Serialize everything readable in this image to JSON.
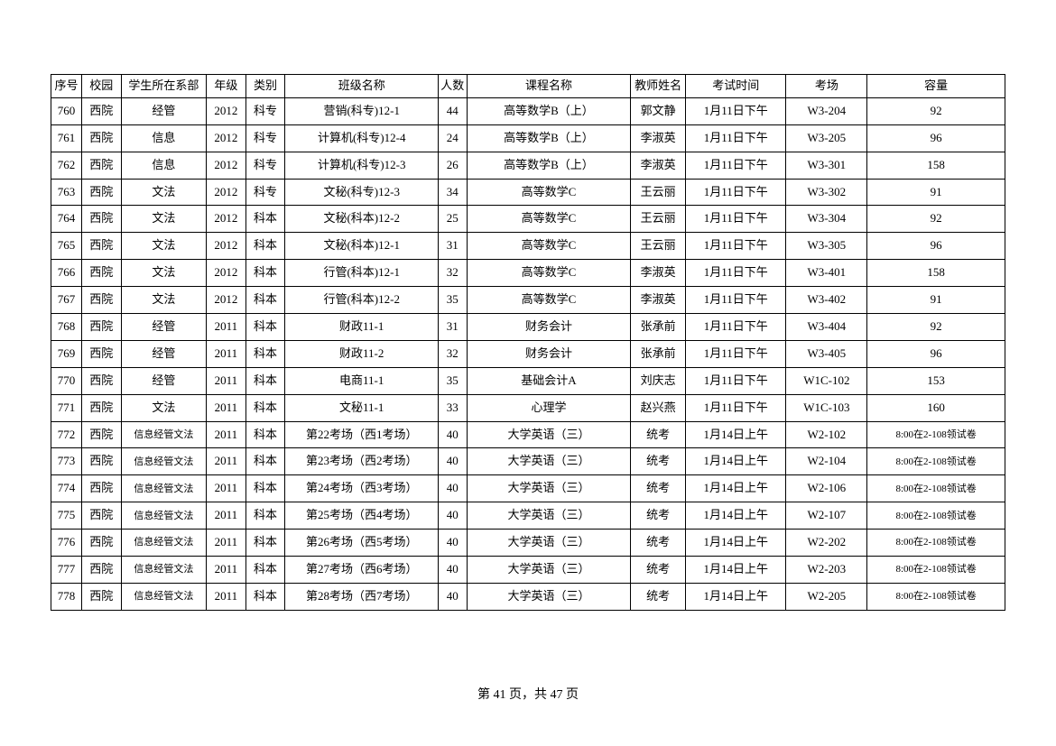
{
  "table": {
    "headers": {
      "seq": "序号",
      "campus": "校园",
      "dept": "学生所在系部",
      "year": "年级",
      "type": "类别",
      "class": "班级名称",
      "count": "人数",
      "course": "课程名称",
      "teacher": "教师姓名",
      "time": "考试时间",
      "room": "考场",
      "capacity": "容量"
    },
    "rows": [
      {
        "seq": "760",
        "campus": "西院",
        "dept": "经管",
        "year": "2012",
        "type": "科专",
        "class": "营销(科专)12-1",
        "count": "44",
        "course": "高等数学B（上）",
        "teacher": "郭文静",
        "time": "1月11日下午",
        "room": "W3-204",
        "capacity": "92"
      },
      {
        "seq": "761",
        "campus": "西院",
        "dept": "信息",
        "year": "2012",
        "type": "科专",
        "class": "计算机(科专)12-4",
        "count": "24",
        "course": "高等数学B（上）",
        "teacher": "李淑英",
        "time": "1月11日下午",
        "room": "W3-205",
        "capacity": "96"
      },
      {
        "seq": "762",
        "campus": "西院",
        "dept": "信息",
        "year": "2012",
        "type": "科专",
        "class": "计算机(科专)12-3",
        "count": "26",
        "course": "高等数学B（上）",
        "teacher": "李淑英",
        "time": "1月11日下午",
        "room": "W3-301",
        "capacity": "158"
      },
      {
        "seq": "763",
        "campus": "西院",
        "dept": "文法",
        "year": "2012",
        "type": "科专",
        "class": "文秘(科专)12-3",
        "count": "34",
        "course": "高等数学C",
        "teacher": "王云丽",
        "time": "1月11日下午",
        "room": "W3-302",
        "capacity": "91"
      },
      {
        "seq": "764",
        "campus": "西院",
        "dept": "文法",
        "year": "2012",
        "type": "科本",
        "class": "文秘(科本)12-2",
        "count": "25",
        "course": "高等数学C",
        "teacher": "王云丽",
        "time": "1月11日下午",
        "room": "W3-304",
        "capacity": "92"
      },
      {
        "seq": "765",
        "campus": "西院",
        "dept": "文法",
        "year": "2012",
        "type": "科本",
        "class": "文秘(科本)12-1",
        "count": "31",
        "course": "高等数学C",
        "teacher": "王云丽",
        "time": "1月11日下午",
        "room": "W3-305",
        "capacity": "96"
      },
      {
        "seq": "766",
        "campus": "西院",
        "dept": "文法",
        "year": "2012",
        "type": "科本",
        "class": "行管(科本)12-1",
        "count": "32",
        "course": "高等数学C",
        "teacher": "李淑英",
        "time": "1月11日下午",
        "room": "W3-401",
        "capacity": "158"
      },
      {
        "seq": "767",
        "campus": "西院",
        "dept": "文法",
        "year": "2012",
        "type": "科本",
        "class": "行管(科本)12-2",
        "count": "35",
        "course": "高等数学C",
        "teacher": "李淑英",
        "time": "1月11日下午",
        "room": "W3-402",
        "capacity": "91"
      },
      {
        "seq": "768",
        "campus": "西院",
        "dept": "经管",
        "year": "2011",
        "type": "科本",
        "class": "财政11-1",
        "count": "31",
        "course": "财务会计",
        "teacher": "张承前",
        "time": "1月11日下午",
        "room": "W3-404",
        "capacity": "92"
      },
      {
        "seq": "769",
        "campus": "西院",
        "dept": "经管",
        "year": "2011",
        "type": "科本",
        "class": "财政11-2",
        "count": "32",
        "course": "财务会计",
        "teacher": "张承前",
        "time": "1月11日下午",
        "room": "W3-405",
        "capacity": "96"
      },
      {
        "seq": "770",
        "campus": "西院",
        "dept": "经管",
        "year": "2011",
        "type": "科本",
        "class": "电商11-1",
        "count": "35",
        "course": "基础会计A",
        "teacher": "刘庆志",
        "time": "1月11日下午",
        "room": "W1C-102",
        "capacity": "153"
      },
      {
        "seq": "771",
        "campus": "西院",
        "dept": "文法",
        "year": "2011",
        "type": "科本",
        "class": "文秘11-1",
        "count": "33",
        "course": "心理学",
        "teacher": "赵兴燕",
        "time": "1月11日下午",
        "room": "W1C-103",
        "capacity": "160"
      },
      {
        "seq": "772",
        "campus": "西院",
        "dept": "信息经管文法",
        "year": "2011",
        "type": "科本",
        "class": "第22考场（西1考场）",
        "count": "40",
        "course": "大学英语（三）",
        "teacher": "统考",
        "time": "1月14日上午",
        "room": "W2-102",
        "capacity": "8:00在2-108领试卷",
        "deptSmall": true
      },
      {
        "seq": "773",
        "campus": "西院",
        "dept": "信息经管文法",
        "year": "2011",
        "type": "科本",
        "class": "第23考场（西2考场）",
        "count": "40",
        "course": "大学英语（三）",
        "teacher": "统考",
        "time": "1月14日上午",
        "room": "W2-104",
        "capacity": "8:00在2-108领试卷",
        "deptSmall": true
      },
      {
        "seq": "774",
        "campus": "西院",
        "dept": "信息经管文法",
        "year": "2011",
        "type": "科本",
        "class": "第24考场（西3考场）",
        "count": "40",
        "course": "大学英语（三）",
        "teacher": "统考",
        "time": "1月14日上午",
        "room": "W2-106",
        "capacity": "8:00在2-108领试卷",
        "deptSmall": true
      },
      {
        "seq": "775",
        "campus": "西院",
        "dept": "信息经管文法",
        "year": "2011",
        "type": "科本",
        "class": "第25考场（西4考场）",
        "count": "40",
        "course": "大学英语（三）",
        "teacher": "统考",
        "time": "1月14日上午",
        "room": "W2-107",
        "capacity": "8:00在2-108领试卷",
        "deptSmall": true
      },
      {
        "seq": "776",
        "campus": "西院",
        "dept": "信息经管文法",
        "year": "2011",
        "type": "科本",
        "class": "第26考场（西5考场）",
        "count": "40",
        "course": "大学英语（三）",
        "teacher": "统考",
        "time": "1月14日上午",
        "room": "W2-202",
        "capacity": "8:00在2-108领试卷",
        "deptSmall": true
      },
      {
        "seq": "777",
        "campus": "西院",
        "dept": "信息经管文法",
        "year": "2011",
        "type": "科本",
        "class": "第27考场（西6考场）",
        "count": "40",
        "course": "大学英语（三）",
        "teacher": "统考",
        "time": "1月14日上午",
        "room": "W2-203",
        "capacity": "8:00在2-108领试卷",
        "deptSmall": true
      },
      {
        "seq": "778",
        "campus": "西院",
        "dept": "信息经管文法",
        "year": "2011",
        "type": "科本",
        "class": "第28考场（西7考场）",
        "count": "40",
        "course": "大学英语（三）",
        "teacher": "统考",
        "time": "1月14日上午",
        "room": "W2-205",
        "capacity": "8:00在2-108领试卷",
        "deptSmall": true
      }
    ]
  },
  "footer": {
    "text": "第 41 页，共 47 页"
  }
}
